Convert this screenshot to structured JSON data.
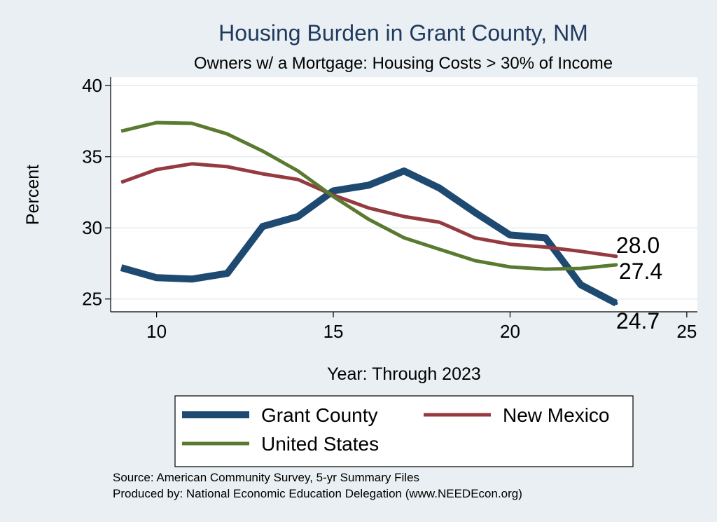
{
  "chart_data": {
    "type": "line",
    "title": "Housing Burden in Grant County, NM",
    "subtitle": "Owners w/ a Mortgage: Housing Costs > 30% of Income",
    "xlabel": "Year: Through 2023",
    "ylabel": "Percent",
    "xlim": [
      8.7,
      25.3
    ],
    "ylim": [
      24.1,
      40.6
    ],
    "xticks": [
      10,
      15,
      20,
      25
    ],
    "yticks": [
      25,
      30,
      35,
      40
    ],
    "grid": true,
    "legend_position": "bottom",
    "series": [
      {
        "name": "Grant County",
        "color": "#1e4a72",
        "x": [
          9,
          10,
          11,
          12,
          13,
          14,
          15,
          16,
          17,
          18,
          19,
          20,
          21,
          22,
          23
        ],
        "y": [
          27.2,
          26.5,
          26.4,
          26.8,
          30.1,
          30.8,
          32.6,
          33.0,
          34.0,
          32.8,
          31.1,
          29.5,
          29.3,
          26.0,
          24.7
        ],
        "end_label": "24.7"
      },
      {
        "name": "New Mexico",
        "color": "#953a3f",
        "x": [
          9,
          10,
          11,
          12,
          13,
          14,
          15,
          16,
          17,
          18,
          19,
          20,
          21,
          22,
          23
        ],
        "y": [
          33.2,
          34.1,
          34.5,
          34.3,
          33.8,
          33.4,
          32.3,
          31.4,
          30.8,
          30.4,
          29.3,
          28.85,
          28.65,
          28.35,
          28.0
        ],
        "end_label": "28.0"
      },
      {
        "name": "United States",
        "color": "#5a7a30",
        "x": [
          9,
          10,
          11,
          12,
          13,
          14,
          15,
          16,
          17,
          18,
          19,
          20,
          21,
          22,
          23
        ],
        "y": [
          36.8,
          37.4,
          37.35,
          36.6,
          35.4,
          34.0,
          32.2,
          30.6,
          29.3,
          28.5,
          27.7,
          27.25,
          27.1,
          27.15,
          27.4
        ],
        "end_label": "27.4"
      }
    ],
    "annotations": [
      "Source: American Community Survey, 5-yr Summary Files",
      "Produced by: National Economic Education Delegation (www.NEEDEcon.org)"
    ]
  }
}
